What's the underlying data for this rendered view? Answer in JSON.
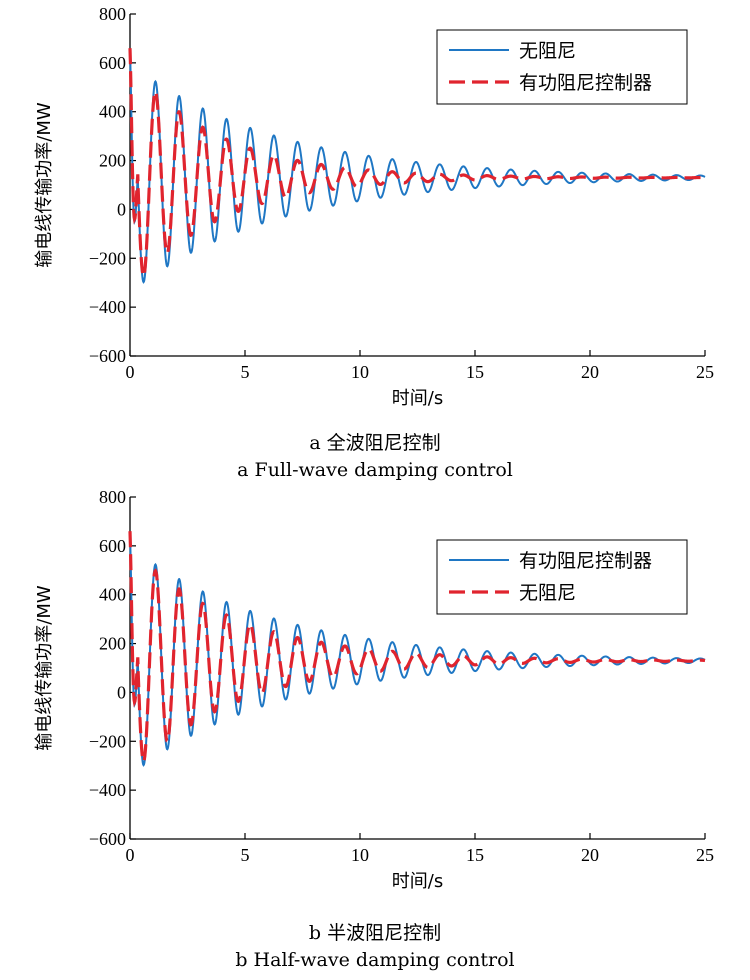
{
  "chart_data": [
    {
      "type": "line",
      "xlabel": "时间/s",
      "ylabel": "输电线传输功率/MW",
      "xlim": [
        0,
        25
      ],
      "ylim": [
        -600,
        800
      ],
      "xticks": [
        "0",
        "5",
        "10",
        "15",
        "20",
        "25"
      ],
      "yticks": [
        "800",
        "600",
        "400",
        "200",
        "0",
        "−200",
        "−400",
        "−600"
      ],
      "legend_position": "top-right",
      "caption_cn": "a  全波阻尼控制",
      "caption_en": "a  Full-wave damping control",
      "series": [
        {
          "name": "无阻尼",
          "color": "#1f77c4",
          "style": "solid",
          "mean": 130,
          "decay": 0.16,
          "period": 1.03,
          "amp": 470
        },
        {
          "name": "有功阻尼控制器",
          "color": "#e0242e",
          "style": "dashed",
          "mean": 130,
          "decay": 0.26,
          "period": 1.03,
          "amp": 470
        }
      ]
    },
    {
      "type": "line",
      "xlabel": "时间/s",
      "ylabel": "输电线传输功率/MW",
      "xlim": [
        0,
        25
      ],
      "ylim": [
        -600,
        800
      ],
      "xticks": [
        "0",
        "5",
        "10",
        "15",
        "20",
        "25"
      ],
      "yticks": [
        "800",
        "600",
        "400",
        "200",
        "0",
        "−200",
        "−400",
        "−600"
      ],
      "legend_position": "top-right",
      "caption_cn": "b  半波阻尼控制",
      "caption_en": "b  Half-wave damping control",
      "series": [
        {
          "name": "有功阻尼控制器",
          "color": "#1f77c4",
          "style": "solid",
          "mean": 130,
          "decay": 0.16,
          "period": 1.03,
          "amp": 470
        },
        {
          "name": "无阻尼",
          "color": "#e0242e",
          "style": "dashed",
          "mean": 130,
          "decay": 0.22,
          "period": 1.03,
          "amp": 470
        }
      ]
    }
  ]
}
